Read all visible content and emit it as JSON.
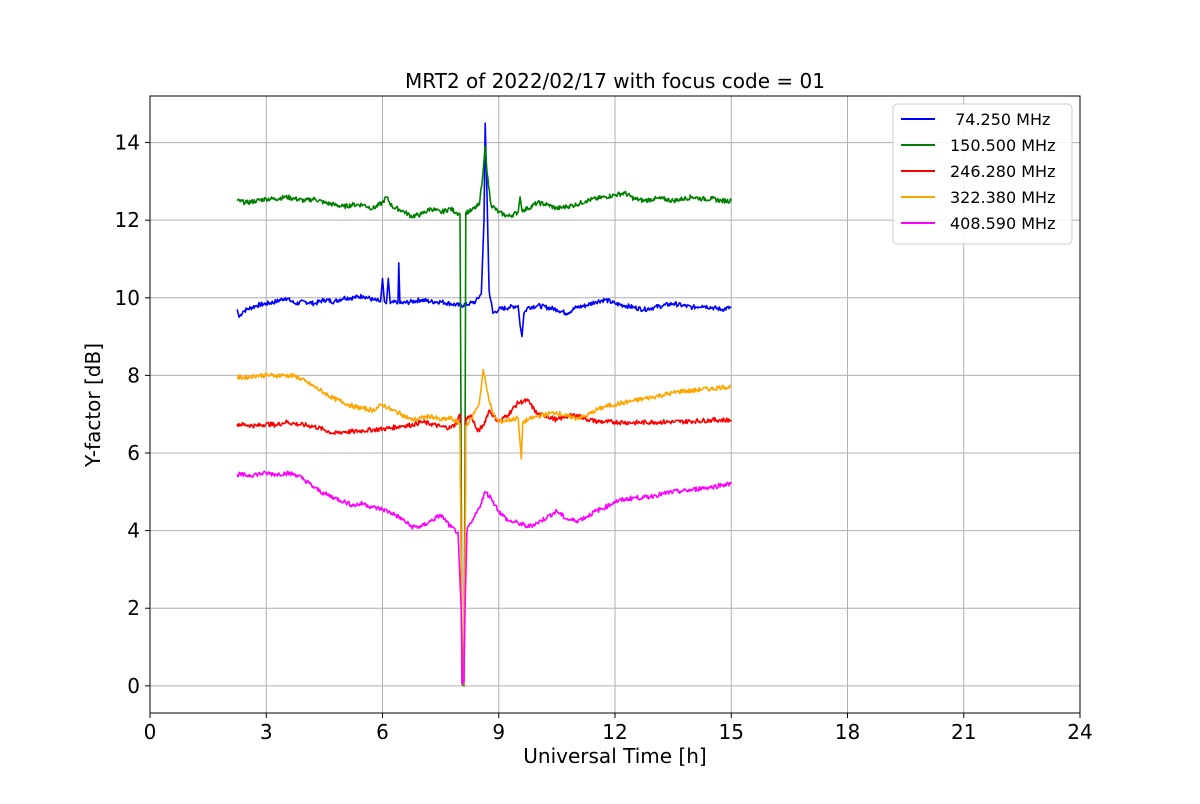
{
  "chart_data": {
    "type": "line",
    "title": "MRT2 of 2022/02/17 with focus code = 01",
    "xlabel": "Universal Time [h]",
    "ylabel": "Y-factor [dB]",
    "xlim": [
      0,
      24
    ],
    "ylim": [
      -0.7,
      15.2
    ],
    "x_ticks": [
      0,
      3,
      6,
      9,
      12,
      15,
      18,
      21,
      24
    ],
    "y_ticks": [
      0,
      2,
      4,
      6,
      8,
      10,
      12,
      14
    ],
    "grid": true,
    "legend_position": "top-right",
    "series": [
      {
        "name": " 74.250 MHz",
        "color": "#0000ff",
        "points": [
          [
            2.25,
            9.7
          ],
          [
            2.3,
            9.5
          ],
          [
            2.4,
            9.65
          ],
          [
            2.5,
            9.7
          ],
          [
            2.75,
            9.8
          ],
          [
            3.0,
            9.85
          ],
          [
            3.25,
            9.9
          ],
          [
            3.5,
            10.0
          ],
          [
            3.75,
            9.85
          ],
          [
            4.0,
            9.9
          ],
          [
            4.25,
            9.85
          ],
          [
            4.5,
            9.95
          ],
          [
            4.75,
            9.9
          ],
          [
            5.0,
            10.0
          ],
          [
            5.25,
            10.0
          ],
          [
            5.5,
            10.05
          ],
          [
            5.75,
            9.95
          ],
          [
            5.95,
            9.9
          ],
          [
            6.0,
            10.5
          ],
          [
            6.05,
            9.9
          ],
          [
            6.1,
            9.85
          ],
          [
            6.15,
            10.5
          ],
          [
            6.2,
            9.85
          ],
          [
            6.4,
            9.9
          ],
          [
            6.42,
            10.9
          ],
          [
            6.45,
            9.85
          ],
          [
            6.75,
            9.9
          ],
          [
            7.0,
            9.95
          ],
          [
            7.25,
            9.9
          ],
          [
            7.5,
            9.9
          ],
          [
            7.75,
            9.85
          ],
          [
            8.0,
            9.8
          ],
          [
            8.25,
            9.85
          ],
          [
            8.4,
            9.9
          ],
          [
            8.55,
            10.1
          ],
          [
            8.62,
            12.0
          ],
          [
            8.65,
            14.5
          ],
          [
            8.7,
            12.5
          ],
          [
            8.75,
            10.2
          ],
          [
            8.85,
            9.6
          ],
          [
            9.0,
            9.7
          ],
          [
            9.25,
            9.75
          ],
          [
            9.5,
            9.8
          ],
          [
            9.55,
            9.3
          ],
          [
            9.6,
            9.0
          ],
          [
            9.65,
            9.6
          ],
          [
            9.75,
            9.75
          ],
          [
            10.0,
            9.8
          ],
          [
            10.5,
            9.7
          ],
          [
            10.75,
            9.6
          ],
          [
            11.0,
            9.75
          ],
          [
            11.25,
            9.8
          ],
          [
            11.5,
            9.9
          ],
          [
            11.75,
            9.95
          ],
          [
            12.0,
            9.85
          ],
          [
            12.25,
            9.8
          ],
          [
            12.5,
            9.75
          ],
          [
            12.75,
            9.7
          ],
          [
            13.0,
            9.75
          ],
          [
            13.25,
            9.8
          ],
          [
            13.5,
            9.85
          ],
          [
            13.75,
            9.8
          ],
          [
            14.0,
            9.75
          ],
          [
            14.25,
            9.8
          ],
          [
            14.5,
            9.75
          ],
          [
            14.75,
            9.7
          ],
          [
            15.0,
            9.75
          ]
        ]
      },
      {
        "name": "150.500 MHz",
        "color": "#008000",
        "points": [
          [
            2.25,
            12.5
          ],
          [
            2.5,
            12.45
          ],
          [
            2.75,
            12.5
          ],
          [
            3.0,
            12.55
          ],
          [
            3.25,
            12.55
          ],
          [
            3.5,
            12.6
          ],
          [
            3.75,
            12.55
          ],
          [
            4.0,
            12.5
          ],
          [
            4.25,
            12.55
          ],
          [
            4.5,
            12.45
          ],
          [
            4.75,
            12.4
          ],
          [
            5.0,
            12.35
          ],
          [
            5.25,
            12.4
          ],
          [
            5.5,
            12.4
          ],
          [
            5.75,
            12.3
          ],
          [
            6.0,
            12.45
          ],
          [
            6.1,
            12.6
          ],
          [
            6.25,
            12.35
          ],
          [
            6.5,
            12.25
          ],
          [
            6.75,
            12.1
          ],
          [
            7.0,
            12.15
          ],
          [
            7.25,
            12.3
          ],
          [
            7.5,
            12.2
          ],
          [
            7.75,
            12.3
          ],
          [
            7.9,
            12.2
          ],
          [
            8.0,
            12.15
          ],
          [
            8.03,
            6.0
          ],
          [
            8.05,
            0.05
          ],
          [
            8.1,
            0.0
          ],
          [
            8.13,
            6.0
          ],
          [
            8.15,
            12.2
          ],
          [
            8.3,
            12.25
          ],
          [
            8.5,
            12.4
          ],
          [
            8.6,
            13.3
          ],
          [
            8.65,
            13.9
          ],
          [
            8.7,
            13.2
          ],
          [
            8.8,
            12.4
          ],
          [
            9.0,
            12.2
          ],
          [
            9.25,
            12.1
          ],
          [
            9.5,
            12.2
          ],
          [
            9.55,
            12.6
          ],
          [
            9.6,
            12.25
          ],
          [
            9.75,
            12.3
          ],
          [
            10.0,
            12.45
          ],
          [
            10.25,
            12.4
          ],
          [
            10.5,
            12.3
          ],
          [
            10.75,
            12.35
          ],
          [
            11.0,
            12.4
          ],
          [
            11.25,
            12.5
          ],
          [
            11.5,
            12.55
          ],
          [
            11.75,
            12.6
          ],
          [
            12.0,
            12.65
          ],
          [
            12.25,
            12.7
          ],
          [
            12.5,
            12.55
          ],
          [
            12.75,
            12.5
          ],
          [
            13.0,
            12.55
          ],
          [
            13.25,
            12.55
          ],
          [
            13.5,
            12.5
          ],
          [
            13.75,
            12.55
          ],
          [
            14.0,
            12.6
          ],
          [
            14.25,
            12.55
          ],
          [
            14.5,
            12.55
          ],
          [
            14.75,
            12.5
          ],
          [
            15.0,
            12.5
          ]
        ]
      },
      {
        "name": "246.280 MHz",
        "color": "#ff0000",
        "points": [
          [
            2.25,
            6.75
          ],
          [
            2.5,
            6.72
          ],
          [
            2.75,
            6.7
          ],
          [
            3.0,
            6.75
          ],
          [
            3.25,
            6.72
          ],
          [
            3.5,
            6.8
          ],
          [
            3.75,
            6.75
          ],
          [
            4.0,
            6.72
          ],
          [
            4.25,
            6.68
          ],
          [
            4.5,
            6.6
          ],
          [
            4.75,
            6.5
          ],
          [
            5.0,
            6.55
          ],
          [
            5.25,
            6.55
          ],
          [
            5.5,
            6.58
          ],
          [
            5.75,
            6.6
          ],
          [
            6.0,
            6.62
          ],
          [
            6.25,
            6.65
          ],
          [
            6.5,
            6.7
          ],
          [
            6.75,
            6.72
          ],
          [
            7.0,
            6.8
          ],
          [
            7.25,
            6.75
          ],
          [
            7.5,
            6.68
          ],
          [
            7.75,
            6.65
          ],
          [
            7.9,
            6.75
          ],
          [
            8.0,
            7.0
          ],
          [
            8.03,
            3.5
          ],
          [
            8.06,
            0.05
          ],
          [
            8.1,
            0.05
          ],
          [
            8.13,
            3.5
          ],
          [
            8.15,
            6.9
          ],
          [
            8.3,
            6.95
          ],
          [
            8.45,
            6.55
          ],
          [
            8.6,
            6.7
          ],
          [
            8.75,
            7.1
          ],
          [
            9.0,
            6.8
          ],
          [
            9.25,
            7.0
          ],
          [
            9.5,
            7.3
          ],
          [
            9.75,
            7.35
          ],
          [
            10.0,
            7.0
          ],
          [
            10.25,
            6.95
          ],
          [
            10.5,
            6.85
          ],
          [
            10.75,
            6.95
          ],
          [
            11.0,
            6.98
          ],
          [
            11.25,
            6.88
          ],
          [
            11.5,
            6.82
          ],
          [
            11.75,
            6.8
          ],
          [
            12.0,
            6.8
          ],
          [
            12.5,
            6.78
          ],
          [
            13.0,
            6.8
          ],
          [
            13.5,
            6.8
          ],
          [
            14.0,
            6.82
          ],
          [
            14.5,
            6.85
          ],
          [
            15.0,
            6.85
          ]
        ]
      },
      {
        "name": "322.380 MHz",
        "color": "#ffa500",
        "points": [
          [
            2.25,
            7.95
          ],
          [
            2.5,
            7.95
          ],
          [
            2.75,
            8.0
          ],
          [
            3.0,
            8.0
          ],
          [
            3.25,
            8.0
          ],
          [
            3.5,
            8.0
          ],
          [
            3.75,
            7.98
          ],
          [
            4.0,
            7.85
          ],
          [
            4.25,
            7.7
          ],
          [
            4.5,
            7.55
          ],
          [
            4.75,
            7.4
          ],
          [
            5.0,
            7.3
          ],
          [
            5.25,
            7.2
          ],
          [
            5.5,
            7.15
          ],
          [
            5.75,
            7.1
          ],
          [
            6.0,
            7.25
          ],
          [
            6.25,
            7.1
          ],
          [
            6.5,
            7.0
          ],
          [
            6.75,
            6.85
          ],
          [
            7.0,
            6.9
          ],
          [
            7.25,
            6.95
          ],
          [
            7.5,
            6.85
          ],
          [
            7.75,
            6.9
          ],
          [
            8.0,
            6.75
          ],
          [
            8.03,
            3.5
          ],
          [
            8.06,
            0.05
          ],
          [
            8.1,
            0.05
          ],
          [
            8.13,
            3.5
          ],
          [
            8.15,
            6.7
          ],
          [
            8.3,
            6.9
          ],
          [
            8.5,
            7.3
          ],
          [
            8.6,
            8.15
          ],
          [
            8.7,
            7.6
          ],
          [
            8.85,
            7.0
          ],
          [
            9.0,
            6.8
          ],
          [
            9.25,
            6.85
          ],
          [
            9.5,
            6.9
          ],
          [
            9.58,
            5.85
          ],
          [
            9.62,
            6.8
          ],
          [
            9.75,
            6.85
          ],
          [
            10.0,
            6.95
          ],
          [
            10.25,
            7.0
          ],
          [
            10.5,
            7.05
          ],
          [
            10.75,
            6.95
          ],
          [
            11.0,
            6.9
          ],
          [
            11.25,
            6.95
          ],
          [
            11.5,
            7.1
          ],
          [
            11.75,
            7.2
          ],
          [
            12.0,
            7.25
          ],
          [
            12.25,
            7.3
          ],
          [
            12.5,
            7.35
          ],
          [
            12.75,
            7.4
          ],
          [
            13.0,
            7.45
          ],
          [
            13.25,
            7.5
          ],
          [
            13.5,
            7.55
          ],
          [
            13.75,
            7.6
          ],
          [
            14.0,
            7.6
          ],
          [
            14.25,
            7.65
          ],
          [
            14.5,
            7.65
          ],
          [
            14.75,
            7.7
          ],
          [
            15.0,
            7.7
          ]
        ]
      },
      {
        "name": "408.590 MHz",
        "color": "#ff00ff",
        "points": [
          [
            2.25,
            5.45
          ],
          [
            2.5,
            5.42
          ],
          [
            2.75,
            5.45
          ],
          [
            3.0,
            5.48
          ],
          [
            3.25,
            5.45
          ],
          [
            3.5,
            5.48
          ],
          [
            3.75,
            5.45
          ],
          [
            4.0,
            5.3
          ],
          [
            4.25,
            5.1
          ],
          [
            4.5,
            4.95
          ],
          [
            4.75,
            4.85
          ],
          [
            5.0,
            4.75
          ],
          [
            5.25,
            4.65
          ],
          [
            5.5,
            4.7
          ],
          [
            5.75,
            4.6
          ],
          [
            6.0,
            4.55
          ],
          [
            6.25,
            4.45
          ],
          [
            6.5,
            4.3
          ],
          [
            6.75,
            4.1
          ],
          [
            7.0,
            4.1
          ],
          [
            7.25,
            4.25
          ],
          [
            7.5,
            4.4
          ],
          [
            7.6,
            4.3
          ],
          [
            7.75,
            4.1
          ],
          [
            7.95,
            3.95
          ],
          [
            8.03,
            2.0
          ],
          [
            8.06,
            0.05
          ],
          [
            8.1,
            0.1
          ],
          [
            8.13,
            2.0
          ],
          [
            8.18,
            4.0
          ],
          [
            8.3,
            4.2
          ],
          [
            8.5,
            4.6
          ],
          [
            8.65,
            5.0
          ],
          [
            8.8,
            4.85
          ],
          [
            9.0,
            4.5
          ],
          [
            9.25,
            4.25
          ],
          [
            9.5,
            4.2
          ],
          [
            9.75,
            4.1
          ],
          [
            10.0,
            4.2
          ],
          [
            10.25,
            4.35
          ],
          [
            10.5,
            4.5
          ],
          [
            10.75,
            4.3
          ],
          [
            11.0,
            4.25
          ],
          [
            11.25,
            4.35
          ],
          [
            11.5,
            4.5
          ],
          [
            11.75,
            4.6
          ],
          [
            12.0,
            4.75
          ],
          [
            12.25,
            4.8
          ],
          [
            12.5,
            4.85
          ],
          [
            12.75,
            4.85
          ],
          [
            13.0,
            4.9
          ],
          [
            13.25,
            4.95
          ],
          [
            13.5,
            5.0
          ],
          [
            13.75,
            5.02
          ],
          [
            14.0,
            5.05
          ],
          [
            14.25,
            5.1
          ],
          [
            14.5,
            5.12
          ],
          [
            14.75,
            5.18
          ],
          [
            15.0,
            5.2
          ]
        ]
      }
    ]
  }
}
